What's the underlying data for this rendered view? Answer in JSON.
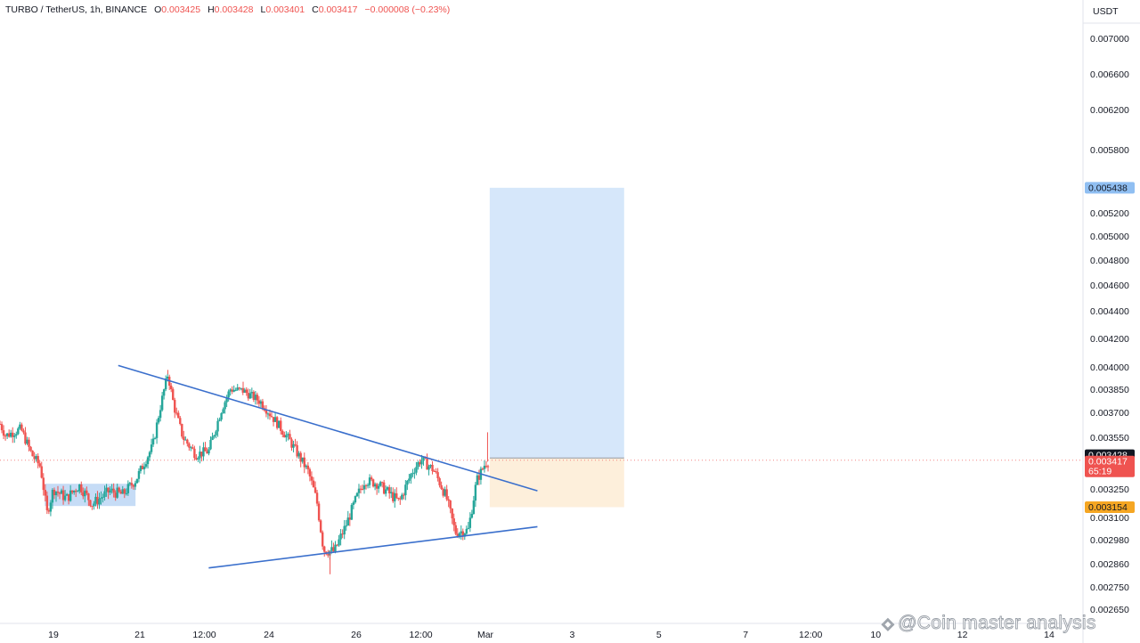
{
  "legend": {
    "symbol": "TURBO / TetherUS, 1h, BINANCE",
    "o_label": "O",
    "o_value": "0.003425",
    "h_label": "H",
    "h_value": "0.003428",
    "l_label": "L",
    "l_value": "0.003401",
    "c_label": "C",
    "c_value": "0.003417",
    "change": "−0.000008 (−0.23%)"
  },
  "currency": "USDT",
  "watermark": "@Coin master analysis",
  "colors": {
    "up": "#26a69a",
    "down": "#ef5350",
    "trendline": "#3a6fcc",
    "target_zone": "#d6e7fa",
    "stop_zone": "#fdefdb",
    "range_box": "#bcd6f5"
  },
  "chart_data": {
    "type": "candlestick",
    "title": "TURBO / TetherUS, 1h, BINANCE",
    "y_range": [
      0.0026,
      0.0073
    ],
    "y_ticks": [
      {
        "value": 0.007,
        "label": "0.007000"
      },
      {
        "value": 0.0066,
        "label": "0.006600"
      },
      {
        "value": 0.0062,
        "label": "0.006200"
      },
      {
        "value": 0.0058,
        "label": "0.005800"
      },
      {
        "value": 0.0052,
        "label": "0.005200"
      },
      {
        "value": 0.005,
        "label": "0.005000"
      },
      {
        "value": 0.0048,
        "label": "0.004800"
      },
      {
        "value": 0.0046,
        "label": "0.004600"
      },
      {
        "value": 0.0044,
        "label": "0.004400"
      },
      {
        "value": 0.0042,
        "label": "0.004200"
      },
      {
        "value": 0.004,
        "label": "0.004000"
      },
      {
        "value": 0.00385,
        "label": "0.003850"
      },
      {
        "value": 0.0037,
        "label": "0.003700"
      },
      {
        "value": 0.00355,
        "label": "0.003550"
      },
      {
        "value": 0.00325,
        "label": "0.003250"
      },
      {
        "value": 0.0031,
        "label": "0.003100"
      },
      {
        "value": 0.00298,
        "label": "0.002980"
      },
      {
        "value": 0.00286,
        "label": "0.002860"
      },
      {
        "value": 0.00275,
        "label": "0.002750"
      },
      {
        "value": 0.00265,
        "label": "0.002650"
      }
    ],
    "x_ticks": [
      {
        "day": 19,
        "label": "19"
      },
      {
        "day": 21,
        "label": "21"
      },
      {
        "day": 22.5,
        "label": "12:00"
      },
      {
        "day": 24,
        "label": "24"
      },
      {
        "day": 26,
        "label": "26"
      },
      {
        "day": 27.5,
        "label": "12:00"
      },
      {
        "day": 29,
        "label": "Mar"
      },
      {
        "day": 31,
        "label": "3"
      },
      {
        "day": 33,
        "label": "5"
      },
      {
        "day": 35,
        "label": "7"
      },
      {
        "day": 36.5,
        "label": "12:00"
      },
      {
        "day": 38,
        "label": "10"
      },
      {
        "day": 40,
        "label": "12"
      },
      {
        "day": 42,
        "label": "14"
      }
    ],
    "x_range_days": [
      17.77,
      42.5
    ],
    "price_tags": [
      {
        "value": 0.005438,
        "label": "0.005438",
        "role": "target",
        "bg": "#90bff2",
        "fg": "#131722"
      },
      {
        "value": 0.003428,
        "label": "0.003428",
        "role": "high",
        "bg": "#131722",
        "fg": "#ffffff"
      },
      {
        "value": 0.003417,
        "label": "0.003417",
        "sub": "65:19",
        "role": "last",
        "bg": "#ef5350",
        "fg": "#ffffff"
      },
      {
        "value": 0.003154,
        "label": "0.003154",
        "role": "stop",
        "bg": "#f5a623",
        "fg": "#131722"
      }
    ],
    "last_price": 0.003417,
    "position": {
      "entry": 0.00343,
      "target": 0.005438,
      "stop": 0.003154,
      "start_day": 29.1,
      "end_day": 32.2
    },
    "trendlines": [
      {
        "name": "upper",
        "from": {
          "day": 20.5,
          "price": 0.00401
        },
        "to": {
          "day": 30.2,
          "price": 0.00324
        }
      },
      {
        "name": "lower",
        "from": {
          "day": 22.6,
          "price": 0.00284
        },
        "to": {
          "day": 30.2,
          "price": 0.00305
        }
      }
    ],
    "range_box": {
      "start_day": 18.8,
      "end_day": 20.9,
      "top": 0.00328,
      "bottom": 0.00316
    },
    "anchors": [
      {
        "day": 17.77,
        "price": 0.00363
      },
      {
        "day": 17.9,
        "price": 0.00356
      },
      {
        "day": 18.25,
        "price": 0.0036
      },
      {
        "day": 18.5,
        "price": 0.00345
      },
      {
        "day": 18.7,
        "price": 0.00338
      },
      {
        "day": 18.85,
        "price": 0.00312
      },
      {
        "day": 19.0,
        "price": 0.00325
      },
      {
        "day": 19.3,
        "price": 0.0032
      },
      {
        "day": 19.6,
        "price": 0.00327
      },
      {
        "day": 19.9,
        "price": 0.00317
      },
      {
        "day": 20.3,
        "price": 0.00324
      },
      {
        "day": 20.6,
        "price": 0.00322
      },
      {
        "day": 20.9,
        "price": 0.0033
      },
      {
        "day": 21.3,
        "price": 0.0035
      },
      {
        "day": 21.55,
        "price": 0.00383
      },
      {
        "day": 21.65,
        "price": 0.00395
      },
      {
        "day": 21.8,
        "price": 0.00373
      },
      {
        "day": 22.0,
        "price": 0.00355
      },
      {
        "day": 22.3,
        "price": 0.00345
      },
      {
        "day": 22.6,
        "price": 0.00347
      },
      {
        "day": 22.9,
        "price": 0.00372
      },
      {
        "day": 23.1,
        "price": 0.00385
      },
      {
        "day": 23.4,
        "price": 0.00384
      },
      {
        "day": 23.8,
        "price": 0.00377
      },
      {
        "day": 24.2,
        "price": 0.00363
      },
      {
        "day": 24.5,
        "price": 0.00352
      },
      {
        "day": 24.9,
        "price": 0.00335
      },
      {
        "day": 25.1,
        "price": 0.00318
      },
      {
        "day": 25.25,
        "price": 0.00293
      },
      {
        "day": 25.5,
        "price": 0.00292
      },
      {
        "day": 25.75,
        "price": 0.00305
      },
      {
        "day": 26.0,
        "price": 0.0032
      },
      {
        "day": 26.2,
        "price": 0.0033
      },
      {
        "day": 26.5,
        "price": 0.00328
      },
      {
        "day": 26.8,
        "price": 0.00322
      },
      {
        "day": 27.0,
        "price": 0.00318
      },
      {
        "day": 27.3,
        "price": 0.00335
      },
      {
        "day": 27.5,
        "price": 0.00342
      },
      {
        "day": 27.8,
        "price": 0.00336
      },
      {
        "day": 28.1,
        "price": 0.0032
      },
      {
        "day": 28.3,
        "price": 0.00302
      },
      {
        "day": 28.6,
        "price": 0.00303
      },
      {
        "day": 28.8,
        "price": 0.0033
      },
      {
        "day": 29.0,
        "price": 0.0034
      },
      {
        "day": 29.1,
        "price": 0.003417
      }
    ]
  }
}
